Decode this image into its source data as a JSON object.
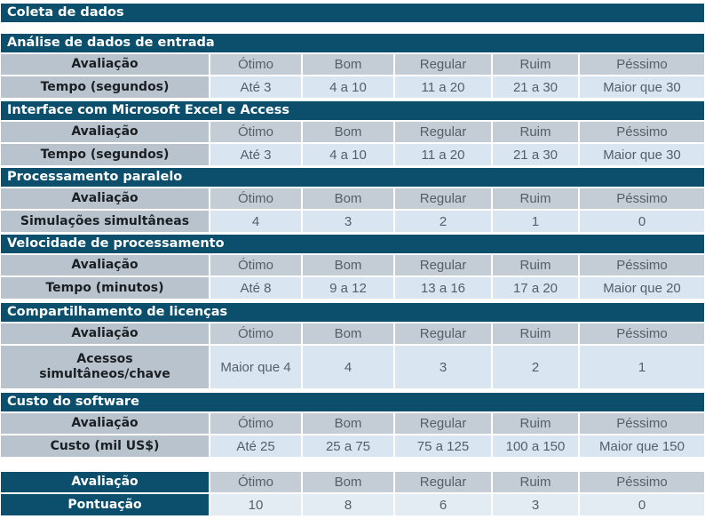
{
  "title": "Coleta de dados",
  "columns": [
    "Avaliação",
    "Ótimo",
    "Bom",
    "Regular",
    "Ruim",
    "Péssimo"
  ],
  "sections": [
    {
      "name": "Análise de dados de entrada",
      "metric": "Tempo (segundos)",
      "values": [
        "Até 3",
        "4 a 10",
        "11 a 20",
        "21 a 30",
        "Maior que 30"
      ]
    },
    {
      "name": "Interface com Microsoft Excel e Access",
      "metric": "Tempo (segundos)",
      "values": [
        "Até 3",
        "4 a 10",
        "11 a 20",
        "21 a 30",
        "Maior que 30"
      ]
    },
    {
      "name": "Processamento paralelo",
      "metric": "Simulações simultâneas",
      "values": [
        "4",
        "3",
        "2",
        "1",
        "0"
      ]
    },
    {
      "name": "Velocidade de processamento",
      "metric": "Tempo (minutos)",
      "values": [
        "Até 8",
        "9 a 12",
        "13 a 16",
        "17 a 20",
        "Maior que 20"
      ]
    },
    {
      "name": "Compartilhamento de licenças",
      "metric": "Acessos simultâneos/chave",
      "values": [
        "Maior que 4",
        "4",
        "3",
        "2",
        "1"
      ]
    },
    {
      "name": "Custo do software",
      "metric": "Custo (mil US$)",
      "values": [
        "Até 25",
        "25 a 75",
        "75 a 125",
        "100 a 150",
        "Maior que 150"
      ]
    }
  ],
  "score": {
    "metric": "Pontuação",
    "values": [
      "10",
      "8",
      "6",
      "3",
      "0"
    ]
  }
}
